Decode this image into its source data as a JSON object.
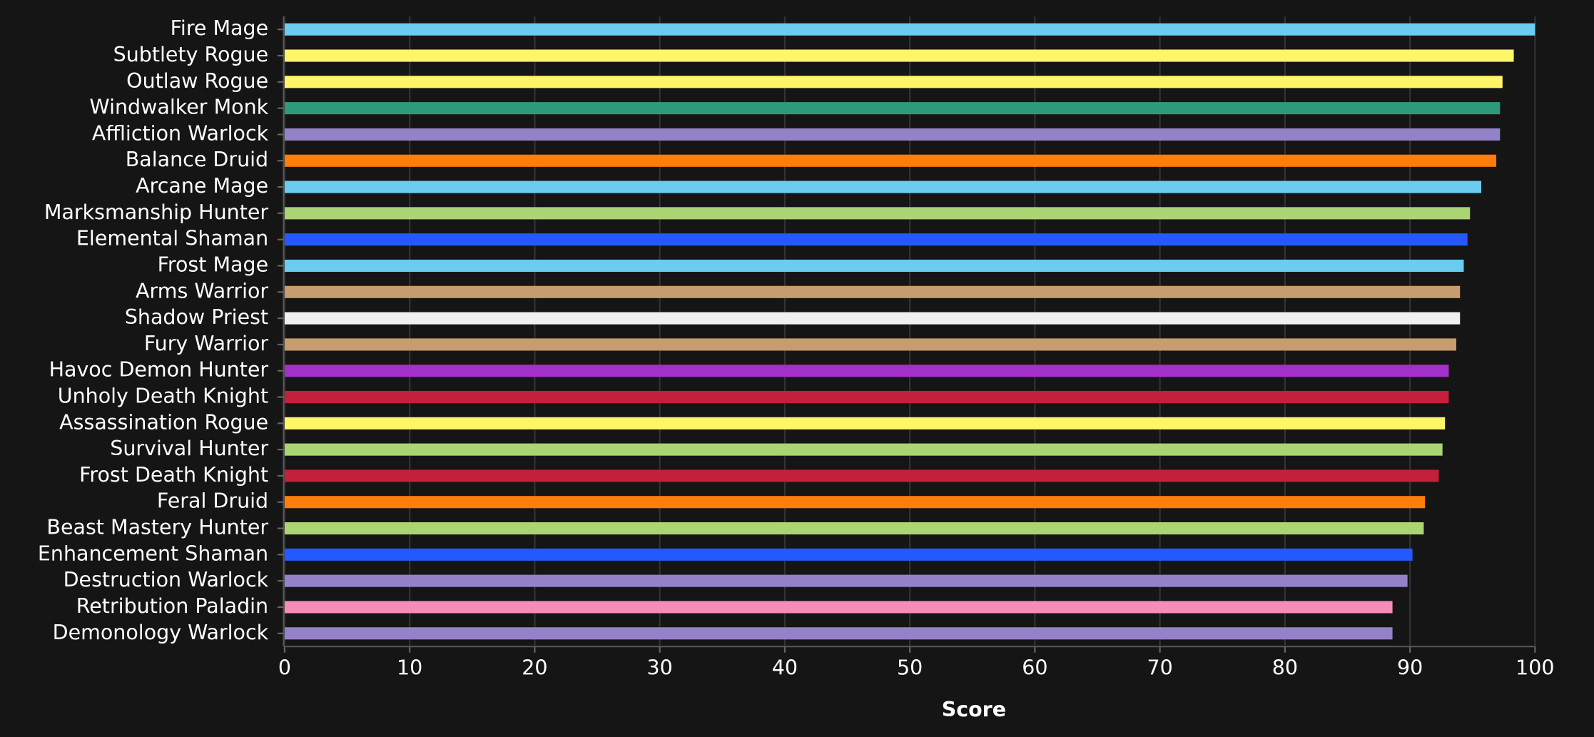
{
  "chart_data": {
    "type": "bar",
    "orientation": "horizontal",
    "categories": [
      "Fire Mage",
      "Subtlety Rogue",
      "Outlaw Rogue",
      "Windwalker Monk",
      "Affliction Warlock",
      "Balance Druid",
      "Arcane Mage",
      "Marksmanship Hunter",
      "Elemental Shaman",
      "Frost Mage",
      "Arms Warrior",
      "Shadow Priest",
      "Fury Warrior",
      "Havoc Demon Hunter",
      "Unholy Death Knight",
      "Assassination Rogue",
      "Survival Hunter",
      "Frost Death Knight",
      "Feral Druid",
      "Beast Mastery Hunter",
      "Enhancement Shaman",
      "Destruction Warlock",
      "Retribution Paladin",
      "Demonology Warlock"
    ],
    "values": [
      100,
      98.3,
      97.4,
      97.2,
      97.2,
      96.9,
      95.7,
      94.8,
      94.6,
      94.3,
      94.0,
      94.0,
      93.7,
      93.1,
      93.1,
      92.8,
      92.6,
      92.3,
      91.2,
      91.1,
      90.2,
      89.8,
      88.6,
      88.6
    ],
    "colors": [
      "#69ccf0",
      "#fff569",
      "#fff569",
      "#2e9a7b",
      "#9482c9",
      "#ff7d0a",
      "#69ccf0",
      "#abd473",
      "#2459ff",
      "#69ccf0",
      "#c79c6e",
      "#f0f0f0",
      "#c79c6e",
      "#a330c9",
      "#c41f3b",
      "#fff569",
      "#abd473",
      "#c41f3b",
      "#ff7d0a",
      "#abd473",
      "#2459ff",
      "#9482c9",
      "#f58cba",
      "#9482c9"
    ],
    "xlabel": "Score",
    "xlim": [
      0,
      100
    ],
    "xticks": [
      0,
      10,
      20,
      30,
      40,
      50,
      60,
      70,
      80,
      90,
      100
    ],
    "grid": true
  }
}
